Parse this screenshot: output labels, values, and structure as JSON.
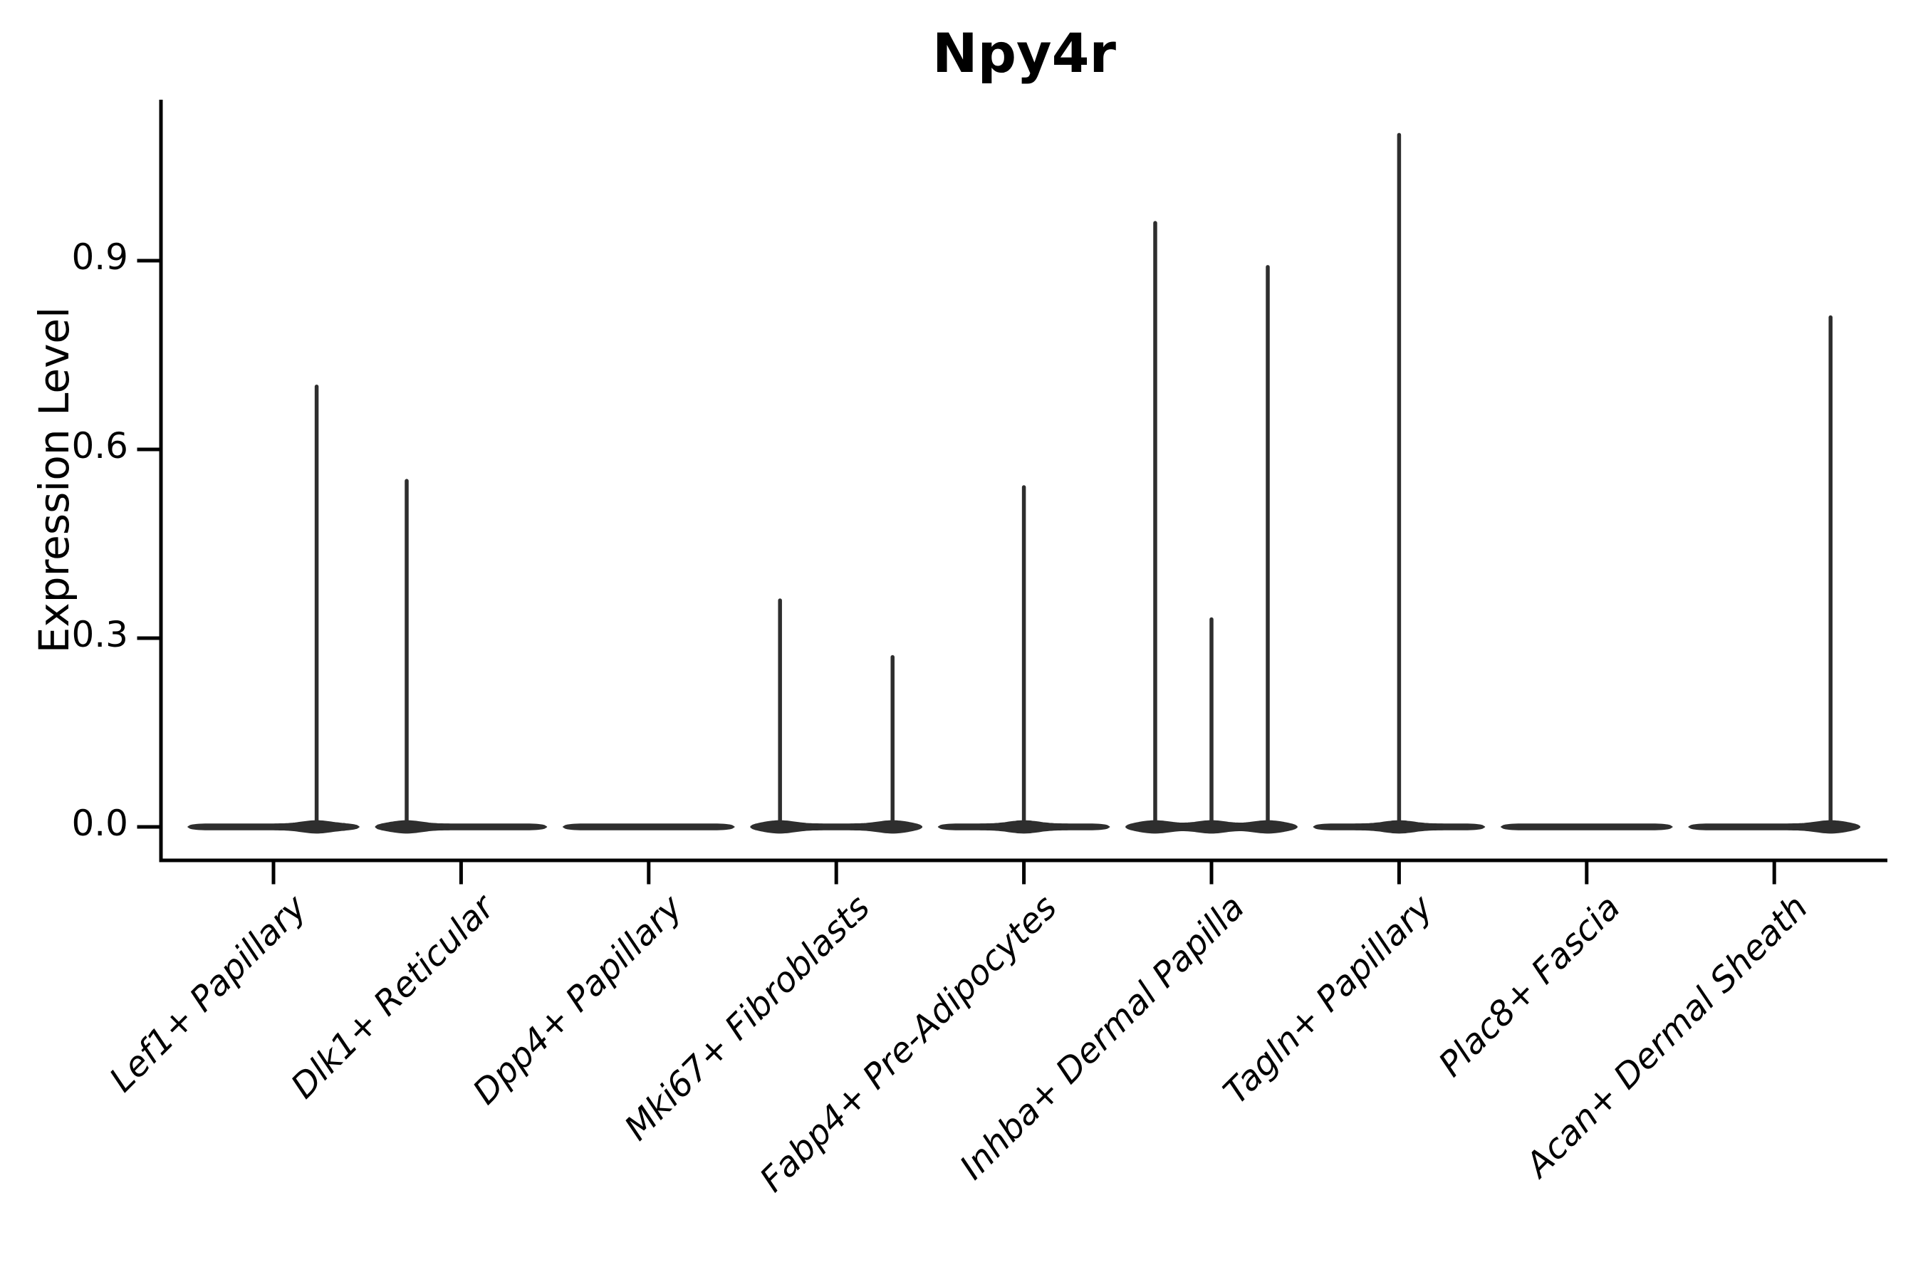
{
  "figure": {
    "background": "#ffffff"
  },
  "chart_data": {
    "type": "violin",
    "title": "Npy4r",
    "xlabel": "",
    "ylabel": "Expression Level",
    "ytick_labels": [
      "0.0",
      "0.3",
      "0.6",
      "0.9"
    ],
    "ytick_values": [
      0.0,
      0.3,
      0.6,
      0.9
    ],
    "ylim": [
      -0.054,
      1.155
    ],
    "grid": false,
    "legend": "none",
    "axis_color": "#000000",
    "violin_color": "#2e2e2e",
    "xtick_rotation_deg": 45,
    "categories": [
      "Lef1+ Papillary",
      "Dlk1+ Reticular",
      "Dpp4+ Papillary",
      "Mki67+ Fibroblasts",
      "Fabp4+ Pre-Adipocytes",
      "Inhba+ Dermal Papilla",
      "Tagln+ Papillary",
      "Plac8+ Fascia",
      "Acan+ Dermal Sheath"
    ],
    "violins": [
      {
        "category": "Lef1+ Papillary",
        "body_max": 0.0,
        "spikes": [
          {
            "pos": 0.23,
            "max": 0.7
          }
        ]
      },
      {
        "category": "Dlk1+ Reticular",
        "body_max": 0.0,
        "spikes": [
          {
            "pos": -0.29,
            "max": 0.55
          }
        ]
      },
      {
        "category": "Dpp4+ Papillary",
        "body_max": 0.0,
        "spikes": []
      },
      {
        "category": "Mki67+ Fibroblasts",
        "body_max": 0.0,
        "spikes": [
          {
            "pos": -0.3,
            "max": 0.36
          },
          {
            "pos": 0.3,
            "max": 0.27
          }
        ]
      },
      {
        "category": "Fabp4+ Pre-Adipocytes",
        "body_max": 0.0,
        "spikes": [
          {
            "pos": 0.0,
            "max": 0.54
          }
        ]
      },
      {
        "category": "Inhba+ Dermal Papilla",
        "body_max": 0.0,
        "spikes": [
          {
            "pos": -0.3,
            "max": 0.96
          },
          {
            "pos": 0.0,
            "max": 0.33
          },
          {
            "pos": 0.3,
            "max": 0.89
          }
        ]
      },
      {
        "category": "Tagln+ Papillary",
        "body_max": 0.0,
        "spikes": [
          {
            "pos": 0.0,
            "max": 1.1
          }
        ]
      },
      {
        "category": "Plac8+ Fascia",
        "body_max": 0.0,
        "spikes": []
      },
      {
        "category": "Acan+ Dermal Sheath",
        "body_max": 0.0,
        "spikes": [
          {
            "pos": 0.3,
            "max": 0.81
          }
        ]
      }
    ]
  }
}
